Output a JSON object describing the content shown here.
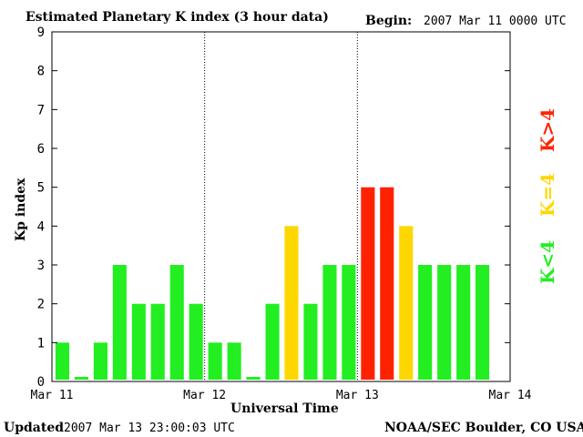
{
  "header": {
    "title": "Estimated Planetary K index (3 hour data)",
    "begin_label": "Begin:",
    "begin_value": "2007 Mar 11 0000 UTC"
  },
  "footer": {
    "updated_label": "Updated",
    "updated_value": "2007 Mar 13 23:00:03 UTC",
    "source": "NOAA/SEC Boulder, CO USA"
  },
  "legend": {
    "low": "K<4",
    "mid": "K=4",
    "high": "K>4"
  },
  "colors": {
    "low": "#22ee22",
    "mid": "#ffd700",
    "high": "#ff2200",
    "axis": "#000000"
  },
  "chart_data": {
    "type": "bar",
    "xlabel": "Universal Time",
    "ylabel": "Kp index",
    "ylim": [
      0,
      9
    ],
    "yticks": [
      "0",
      "1",
      "2",
      "3",
      "4",
      "5",
      "6",
      "7",
      "8",
      "9"
    ],
    "xticks": [
      "Mar 11",
      "Mar 12",
      "Mar 13",
      "Mar 14"
    ],
    "interval_hours": 3,
    "values": [
      1,
      0,
      1,
      3,
      2,
      2,
      3,
      2,
      1,
      1,
      0,
      2,
      4,
      2,
      3,
      3,
      5,
      5,
      4,
      3,
      3,
      3,
      3
    ]
  }
}
